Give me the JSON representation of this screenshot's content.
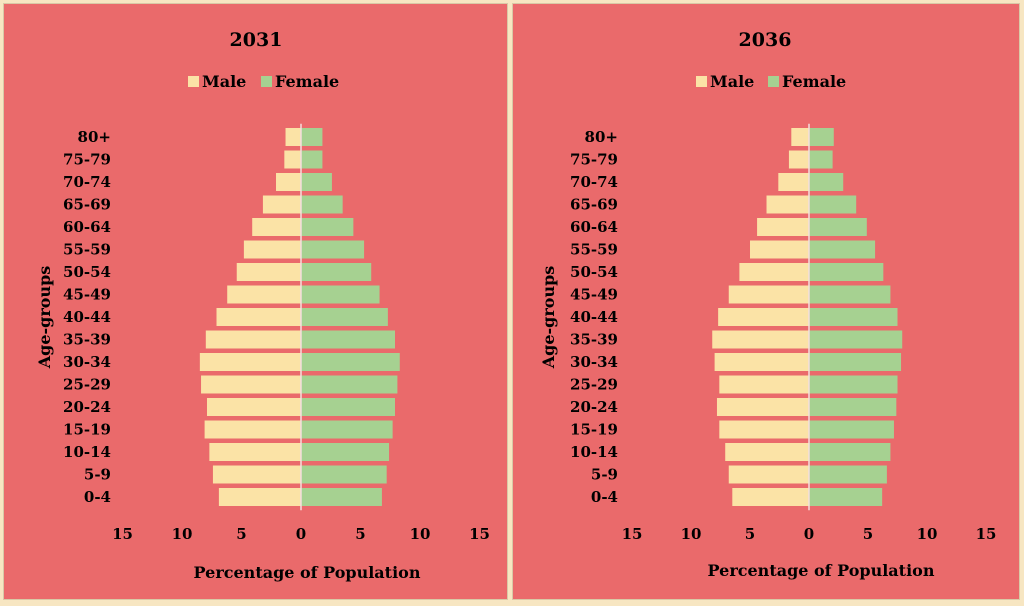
{
  "chart_data": [
    {
      "type": "bar",
      "title": "2031",
      "xlabel": "Percentage of Population",
      "ylabel": "Age-groups",
      "legend": [
        "Male",
        "Female"
      ],
      "legend_position": "top",
      "xlim": [
        -15,
        15
      ],
      "x_ticks": [
        "15",
        "10",
        "5",
        "0",
        "5",
        "10",
        "15"
      ],
      "categories": [
        "80+",
        "75-79",
        "70-74",
        "65-69",
        "60-64",
        "55-59",
        "50-54",
        "45-49",
        "40-44",
        "35-39",
        "30-34",
        "25-29",
        "20-24",
        "15-19",
        "10-14",
        "5-9",
        "0-4"
      ],
      "series": [
        {
          "name": "Male",
          "color": "#fbe3a6",
          "values": [
            1.3,
            1.4,
            2.1,
            3.2,
            4.1,
            4.8,
            5.4,
            6.2,
            7.1,
            8.0,
            8.5,
            8.4,
            7.9,
            8.1,
            7.7,
            7.4,
            6.9
          ]
        },
        {
          "name": "Female",
          "color": "#a6d191",
          "values": [
            1.8,
            1.8,
            2.6,
            3.5,
            4.4,
            5.3,
            5.9,
            6.6,
            7.3,
            7.9,
            8.3,
            8.1,
            7.9,
            7.7,
            7.4,
            7.2,
            6.8
          ]
        }
      ]
    },
    {
      "type": "bar",
      "title": "2036",
      "xlabel": "Percentage of Population",
      "ylabel": "Age-groups",
      "legend": [
        "Male",
        "Female"
      ],
      "legend_position": "top",
      "xlim": [
        -15,
        15
      ],
      "x_ticks": [
        "15",
        "10",
        "5",
        "0",
        "5",
        "10",
        "15"
      ],
      "categories": [
        "80+",
        "75-79",
        "70-74",
        "65-69",
        "60-64",
        "55-59",
        "50-54",
        "45-49",
        "40-44",
        "35-39",
        "30-34",
        "25-29",
        "20-24",
        "15-19",
        "10-14",
        "5-9",
        "0-4"
      ],
      "series": [
        {
          "name": "Male",
          "color": "#fbe3a6",
          "values": [
            1.5,
            1.7,
            2.6,
            3.6,
            4.4,
            5.0,
            5.9,
            6.8,
            7.7,
            8.2,
            8.0,
            7.6,
            7.8,
            7.6,
            7.1,
            6.8,
            6.5
          ]
        },
        {
          "name": "Female",
          "color": "#a6d191",
          "values": [
            2.1,
            2.0,
            2.9,
            4.0,
            4.9,
            5.6,
            6.3,
            6.9,
            7.5,
            7.9,
            7.8,
            7.5,
            7.4,
            7.2,
            6.9,
            6.6,
            6.2
          ]
        }
      ]
    }
  ]
}
